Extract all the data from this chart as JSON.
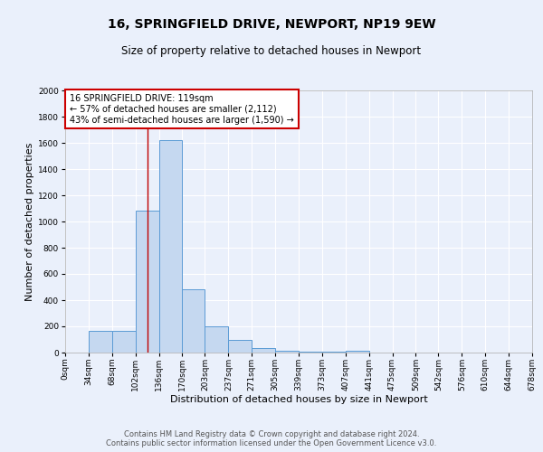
{
  "title": "16, SPRINGFIELD DRIVE, NEWPORT, NP19 9EW",
  "subtitle": "Size of property relative to detached houses in Newport",
  "xlabel": "Distribution of detached houses by size in Newport",
  "ylabel": "Number of detached properties",
  "bar_edges": [
    0,
    34,
    68,
    102,
    136,
    170,
    203,
    237,
    271,
    305,
    339,
    373,
    407,
    441,
    475,
    509,
    542,
    576,
    610,
    644,
    678
  ],
  "bar_heights": [
    0,
    165,
    165,
    1080,
    1620,
    480,
    200,
    100,
    35,
    15,
    10,
    5,
    15,
    0,
    0,
    0,
    0,
    0,
    0,
    0
  ],
  "bar_color": "#c5d8f0",
  "bar_edge_color": "#5b9bd5",
  "bar_edge_width": 0.7,
  "red_line_x": 119,
  "red_line_color": "#c00000",
  "ylim": [
    0,
    2000
  ],
  "yticks": [
    0,
    200,
    400,
    600,
    800,
    1000,
    1200,
    1400,
    1600,
    1800,
    2000
  ],
  "bg_color": "#eaf0fb",
  "plot_bg_color": "#eaf0fb",
  "grid_color": "#ffffff",
  "annotation_line1": "16 SPRINGFIELD DRIVE: 119sqm",
  "annotation_line2": "← 57% of detached houses are smaller (2,112)",
  "annotation_line3": "43% of semi-detached houses are larger (1,590) →",
  "annotation_box_color": "#ffffff",
  "annotation_box_edge_color": "#cc0000",
  "footer_line1": "Contains HM Land Registry data © Crown copyright and database right 2024.",
  "footer_line2": "Contains public sector information licensed under the Open Government Licence v3.0.",
  "title_fontsize": 10,
  "subtitle_fontsize": 8.5,
  "xlabel_fontsize": 8,
  "ylabel_fontsize": 8,
  "tick_fontsize": 6.5,
  "annotation_fontsize": 7,
  "footer_fontsize": 6
}
